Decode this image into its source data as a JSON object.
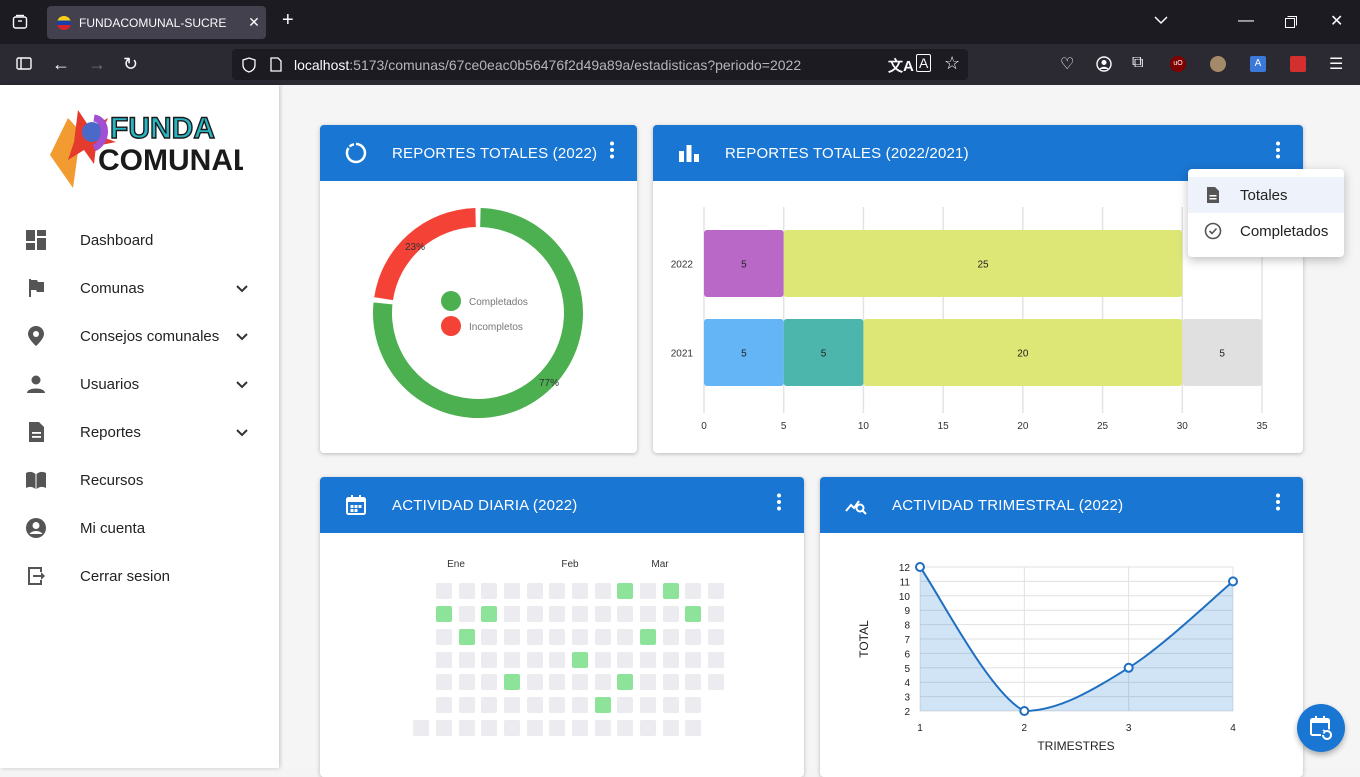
{
  "browser": {
    "tab_title": "FUNDACOMUNAL-SUCRE",
    "url_host": "localhost",
    "url_rest": ":5173/comunas/67ce0eac0b56476f2d49a89a/estadisticas?periodo=2022"
  },
  "sidebar": {
    "logo_line1": "FUNDA",
    "logo_line2": "COMUNAL",
    "items": [
      {
        "label": "Dashboard",
        "icon": "dashboard-icon",
        "expandable": false
      },
      {
        "label": "Comunas",
        "icon": "flag-icon",
        "expandable": true
      },
      {
        "label": "Consejos comunales",
        "icon": "location-pin-icon",
        "expandable": true
      },
      {
        "label": "Usuarios",
        "icon": "person-icon",
        "expandable": true
      },
      {
        "label": "Reportes",
        "icon": "document-icon",
        "expandable": true
      },
      {
        "label": "Recursos",
        "icon": "book-icon",
        "expandable": false
      },
      {
        "label": "Mi cuenta",
        "icon": "account-circle-icon",
        "expandable": false
      },
      {
        "label": "Cerrar sesion",
        "icon": "logout-icon",
        "expandable": false
      }
    ]
  },
  "cards": {
    "totales": {
      "title": "REPORTES TOTALES (2022)",
      "icon": "donut-icon"
    },
    "comparativo": {
      "title": "REPORTES TOTALES (2022/2021)",
      "icon": "bar-chart-icon"
    },
    "diaria": {
      "title": "ACTIVIDAD DIARIA (2022)",
      "icon": "calendar-icon"
    },
    "trimestral": {
      "title": "ACTIVIDAD TRIMESTRAL (2022)",
      "icon": "trend-search-icon"
    }
  },
  "dropdown": {
    "items": [
      {
        "label": "Totales",
        "icon": "document-icon",
        "active": true
      },
      {
        "label": "Completados",
        "icon": "check-circle-icon",
        "active": false
      }
    ]
  },
  "colors": {
    "primary": "#1976d2",
    "green": "#4caf50",
    "red": "#f44336",
    "heat_active": "#8ee39b",
    "heat_empty": "#ebebf0"
  },
  "chart_data": [
    {
      "type": "pie",
      "variant": "donut",
      "labels": [
        "Completados",
        "Incompletos"
      ],
      "values": [
        77,
        23
      ],
      "value_labels": [
        "77%",
        "23%"
      ],
      "colors": [
        "#4caf50",
        "#f44336"
      ],
      "legend": "center"
    },
    {
      "type": "bar",
      "orientation": "horizontal",
      "stacked": true,
      "categories": [
        "2022",
        "2021"
      ],
      "segments": {
        "2022": [
          {
            "value": 5,
            "color": "#ba68c8"
          },
          {
            "value": 25,
            "color": "#dce775"
          }
        ],
        "2021": [
          {
            "value": 5,
            "color": "#64b5f6"
          },
          {
            "value": 5,
            "color": "#4db6ac"
          },
          {
            "value": 20,
            "color": "#dce775"
          },
          {
            "value": 5,
            "color": "#e0e0e0"
          }
        ]
      },
      "xticks": [
        "0",
        "5",
        "10",
        "15",
        "20",
        "25",
        "30",
        "35"
      ],
      "xlim": [
        0,
        35
      ],
      "grid": true
    },
    {
      "type": "heatmap",
      "month_labels": [
        "Ene",
        "Feb",
        "Mar"
      ],
      "rows": 7,
      "active_cells": [
        [
          0,
          9
        ],
        [
          0,
          11
        ],
        [
          1,
          1
        ],
        [
          1,
          3
        ],
        [
          1,
          12
        ],
        [
          2,
          2
        ],
        [
          2,
          10
        ],
        [
          3,
          7
        ],
        [
          4,
          4
        ],
        [
          4,
          9
        ],
        [
          5,
          8
        ]
      ]
    },
    {
      "type": "area",
      "x": [
        1,
        2,
        3,
        4
      ],
      "y": [
        12,
        2,
        5,
        11
      ],
      "xlabel": "TRIMESTRES",
      "ylabel": "TOTAL",
      "xticks": [
        "1",
        "2",
        "3",
        "4"
      ],
      "yticks": [
        "2",
        "3",
        "4",
        "5",
        "6",
        "7",
        "8",
        "9",
        "10",
        "11",
        "12"
      ],
      "xlim": [
        1,
        4
      ],
      "ylim": [
        2,
        12
      ],
      "grid": true
    }
  ]
}
